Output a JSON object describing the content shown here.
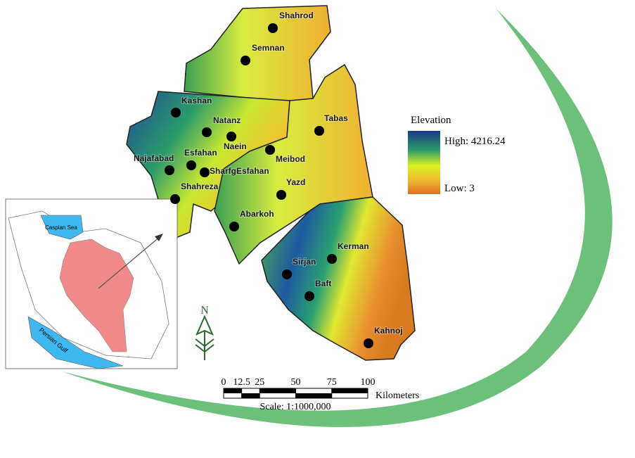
{
  "cities": [
    "Shahrod",
    "Semnan",
    "Kashan",
    "Natanz",
    "Naein",
    "Tabas",
    "Najafabad",
    "Esfahan",
    "SharfgEsfahan",
    "Meibod",
    "Yazd",
    "Shahreza",
    "Abarkoh",
    "Kerman",
    "Sirjan",
    "Baft",
    "Kahnoj"
  ],
  "legend": {
    "title": "Elevation",
    "high": "High: 4216.24",
    "low": "Low: 3"
  },
  "inset": {
    "caspian": "Caspian Sea",
    "gulf": "Persian Gulf"
  },
  "north": "N",
  "scale": {
    "ticks": [
      0,
      12.5,
      25,
      50,
      75,
      100
    ],
    "unit": "Kilometers",
    "label": "Scale: 1:1000,000"
  }
}
